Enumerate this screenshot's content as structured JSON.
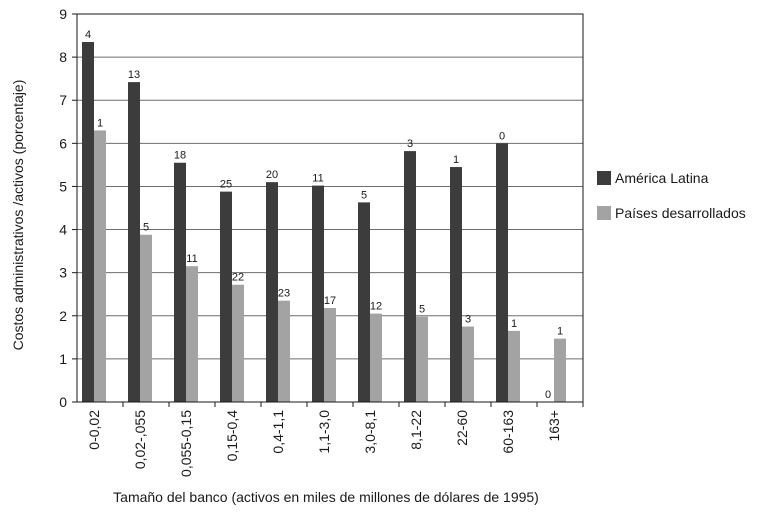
{
  "chart_data": {
    "type": "bar",
    "title": "",
    "xlabel": "Tamaño del banco (activos en miles de millones de dólares de 1995)",
    "ylabel": "Costos administrativos /activos (porcentaje)",
    "ylim": [
      0,
      9
    ],
    "yticks": [
      "0",
      "1",
      "2",
      "3",
      "4",
      "5",
      "6",
      "7",
      "8",
      "9"
    ],
    "grid": true,
    "legend_position": "right",
    "categories": [
      "0-0,02",
      "0,02-,055",
      "0,055-0,15",
      "0,15-0,4",
      "0,4-1,1",
      "1,1-3,0",
      "3,0-8,1",
      "8,1-22",
      "22-60",
      "60-163",
      "163+"
    ],
    "series": [
      {
        "name": "América Latina",
        "color": "#3c3c3c",
        "values": [
          8.35,
          7.42,
          5.55,
          4.88,
          5.1,
          5.02,
          4.63,
          5.82,
          5.45,
          6.0,
          0
        ],
        "labels": [
          "4",
          "13",
          "18",
          "25",
          "20",
          "11",
          "5",
          "3",
          "1",
          "0",
          "0"
        ]
      },
      {
        "name": "Países desarrollados",
        "color": "#a3a3a3",
        "values": [
          6.3,
          3.88,
          3.15,
          2.72,
          2.35,
          2.18,
          2.05,
          1.98,
          1.75,
          1.65,
          1.47
        ],
        "labels": [
          "1",
          "5",
          "11",
          "22",
          "23",
          "17",
          "12",
          "5",
          "3",
          "1",
          "1"
        ]
      }
    ]
  }
}
